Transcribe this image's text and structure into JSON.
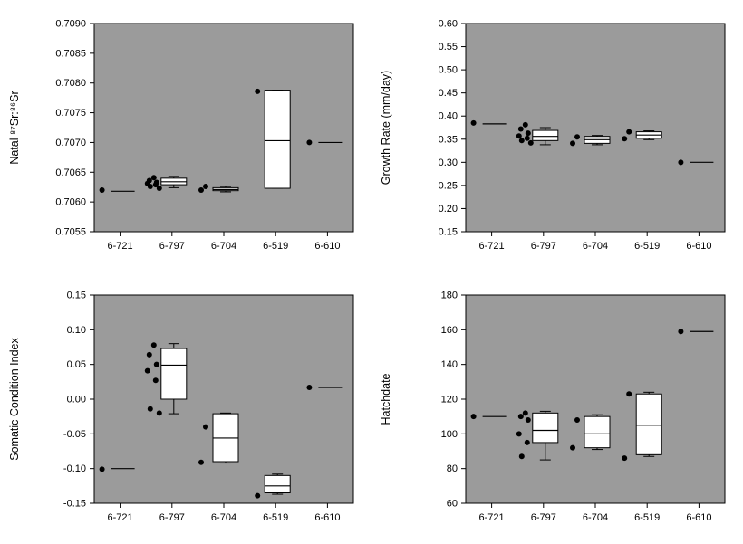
{
  "page": {
    "background": "#ffffff"
  },
  "colors": {
    "plot_bg": "#9b9b9b",
    "box_fill": "#ffffff",
    "stroke": "#000000",
    "point": "#000000"
  },
  "chart_data": [
    {
      "type": "box",
      "name": "natal-sr-ratio",
      "title": "",
      "ylabel": "Natal ⁸⁷Sr:⁸⁶Sr",
      "xlabel": "",
      "ylim": [
        0.7055,
        0.709
      ],
      "ytick_step": 0.0005,
      "ytick_decimals": 4,
      "grid": false,
      "legend": "none",
      "categories": [
        "6-721",
        "6-797",
        "6-704",
        "6-519",
        "6-610"
      ],
      "groups": [
        {
          "points": [
            0.7062
          ],
          "line": 0.70618
        },
        {
          "points": [
            0.70641,
            0.70636,
            0.70633,
            0.70631,
            0.70629,
            0.70626,
            0.70623
          ],
          "box": {
            "lo": 0.70624,
            "q1": 0.70629,
            "med": 0.70634,
            "q3": 0.7064,
            "hi": 0.70643
          }
        },
        {
          "points": [
            0.70626,
            0.7062
          ],
          "box": {
            "lo": 0.70617,
            "q1": 0.70619,
            "med": 0.70621,
            "q3": 0.70624,
            "hi": 0.70626
          }
        },
        {
          "points": [
            0.70786
          ],
          "box": {
            "lo": 0.70623,
            "q1": 0.70623,
            "med": 0.70703,
            "q3": 0.70788,
            "hi": 0.70788
          }
        },
        {
          "points": [
            0.707
          ],
          "line": 0.707
        }
      ]
    },
    {
      "type": "box",
      "name": "growth-rate",
      "title": "",
      "ylabel": "Growth Rate (mm/day)",
      "xlabel": "",
      "ylim": [
        0.15,
        0.6
      ],
      "ytick_step": 0.05,
      "ytick_decimals": 2,
      "grid": false,
      "legend": "none",
      "categories": [
        "6-721",
        "6-797",
        "6-704",
        "6-519",
        "6-610"
      ],
      "groups": [
        {
          "points": [
            0.385
          ],
          "line": 0.383
        },
        {
          "points": [
            0.381,
            0.372,
            0.363,
            0.357,
            0.352,
            0.347,
            0.342
          ],
          "box": {
            "lo": 0.338,
            "q1": 0.347,
            "med": 0.356,
            "q3": 0.369,
            "hi": 0.375
          }
        },
        {
          "points": [
            0.355,
            0.341
          ],
          "box": {
            "lo": 0.338,
            "q1": 0.341,
            "med": 0.349,
            "q3": 0.356,
            "hi": 0.358
          }
        },
        {
          "points": [
            0.366,
            0.351
          ],
          "box": {
            "lo": 0.349,
            "q1": 0.352,
            "med": 0.359,
            "q3": 0.366,
            "hi": 0.368
          }
        },
        {
          "points": [
            0.3
          ],
          "line": 0.3
        }
      ]
    },
    {
      "type": "box",
      "name": "somatic-condition-index",
      "title": "",
      "ylabel": "Somatic Condition Index",
      "xlabel": "",
      "ylim": [
        -0.15,
        0.15
      ],
      "ytick_step": 0.05,
      "ytick_decimals": 2,
      "grid": false,
      "legend": "none",
      "categories": [
        "6-721",
        "6-797",
        "6-704",
        "6-519",
        "6-610"
      ],
      "groups": [
        {
          "points": [
            -0.101
          ],
          "line": -0.1
        },
        {
          "points": [
            0.078,
            0.064,
            0.05,
            0.041,
            0.027,
            -0.014,
            -0.02
          ],
          "box": {
            "lo": -0.021,
            "q1": 0.0,
            "med": 0.049,
            "q3": 0.073,
            "hi": 0.08
          }
        },
        {
          "points": [
            -0.04,
            -0.091
          ],
          "box": {
            "lo": -0.092,
            "q1": -0.09,
            "med": -0.056,
            "q3": -0.021,
            "hi": -0.02
          }
        },
        {
          "points": [
            -0.139
          ],
          "box": {
            "lo": -0.137,
            "q1": -0.135,
            "med": -0.125,
            "q3": -0.11,
            "hi": -0.108
          }
        },
        {
          "points": [
            0.017
          ],
          "line": 0.017
        }
      ]
    },
    {
      "type": "box",
      "name": "hatchdate",
      "title": "",
      "ylabel": "Hatchdate",
      "xlabel": "",
      "ylim": [
        60,
        180
      ],
      "ytick_step": 20,
      "ytick_decimals": 0,
      "grid": false,
      "legend": "none",
      "categories": [
        "6-721",
        "6-797",
        "6-704",
        "6-519",
        "6-610"
      ],
      "groups": [
        {
          "points": [
            110
          ],
          "line": 110
        },
        {
          "points": [
            112,
            110,
            108,
            100,
            95,
            87
          ],
          "box": {
            "lo": 85,
            "q1": 95,
            "med": 102,
            "q3": 112,
            "hi": 113
          }
        },
        {
          "points": [
            108,
            92
          ],
          "box": {
            "lo": 91,
            "q1": 92,
            "med": 100,
            "q3": 110,
            "hi": 111
          }
        },
        {
          "points": [
            123,
            86
          ],
          "box": {
            "lo": 87,
            "q1": 88,
            "med": 105,
            "q3": 123,
            "hi": 124
          }
        },
        {
          "points": [
            159
          ],
          "line": 159
        }
      ]
    }
  ]
}
